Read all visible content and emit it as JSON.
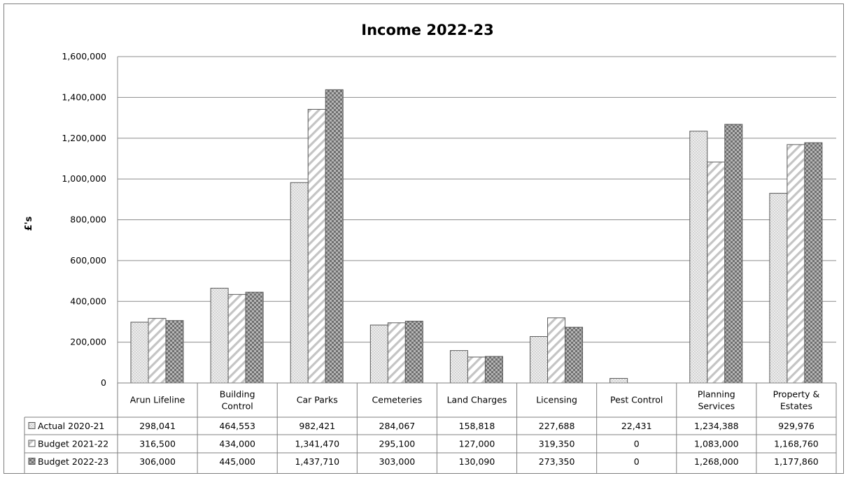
{
  "colors": {
    "grid": "#8c8c8c",
    "border": "#7f7f7f",
    "bar_stroke": "#5a5a5a",
    "series_fills": [
      "#cfcfcf",
      "#ffffff",
      "#8e8e8e"
    ],
    "series_patterns": [
      "dots",
      "diagonal-stripes",
      "checker"
    ]
  },
  "chart_data": {
    "type": "bar",
    "title": "Income 2022-23",
    "ylabel": "£'s",
    "xlabel": "",
    "ylim": [
      0,
      1600000
    ],
    "yticks": [
      0,
      200000,
      400000,
      600000,
      800000,
      1000000,
      1200000,
      1400000,
      1600000
    ],
    "ytick_labels": [
      "0",
      "200,000",
      "400,000",
      "600,000",
      "800,000",
      "1,000,000",
      "1,200,000",
      "1,400,000",
      "1,600,000"
    ],
    "grid": true,
    "legend": "data-table",
    "categories": [
      [
        "Arun Lifeline"
      ],
      [
        "Building",
        "Control"
      ],
      [
        "Car Parks"
      ],
      [
        "Cemeteries"
      ],
      [
        "Land Charges"
      ],
      [
        "Licensing"
      ],
      [
        "Pest Control"
      ],
      [
        "Planning",
        "Services"
      ],
      [
        "Property &",
        "Estates"
      ]
    ],
    "series": [
      {
        "name": "Actual 2020-21",
        "values": [
          298041,
          464553,
          982421,
          284067,
          158818,
          227688,
          22431,
          1234388,
          929976
        ],
        "labels": [
          "298,041",
          "464,553",
          "982,421",
          "284,067",
          "158,818",
          "227,688",
          "22,431",
          "1,234,388",
          "929,976"
        ]
      },
      {
        "name": "Budget 2021-22",
        "values": [
          316500,
          434000,
          1341470,
          295100,
          127000,
          319350,
          0,
          1083000,
          1168760
        ],
        "labels": [
          "316,500",
          "434,000",
          "1,341,470",
          "295,100",
          "127,000",
          "319,350",
          "0",
          "1,083,000",
          "1,168,760"
        ]
      },
      {
        "name": "Budget 2022-23",
        "values": [
          306000,
          445000,
          1437710,
          303000,
          130090,
          273350,
          0,
          1268000,
          1177860
        ],
        "labels": [
          "306,000",
          "445,000",
          "1,437,710",
          "303,000",
          "130,090",
          "273,350",
          "0",
          "1,268,000",
          "1,177,860"
        ]
      }
    ]
  }
}
